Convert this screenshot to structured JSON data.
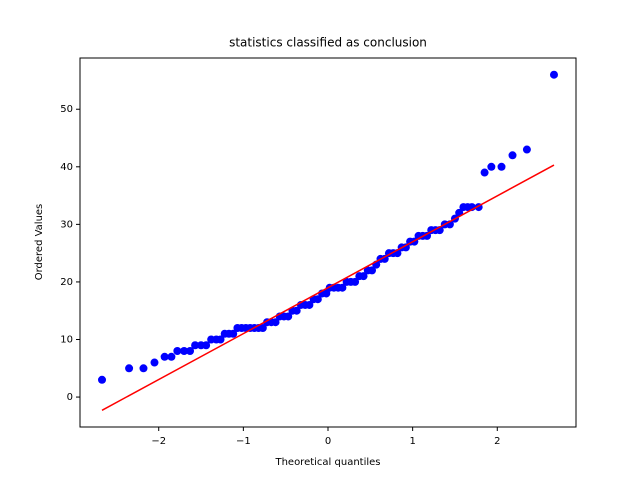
{
  "chart_data": {
    "type": "scatter",
    "title": "statistics classified as conclusion",
    "x_label": "Theoretical quantiles",
    "y_label": "Ordered Values",
    "xlim": [
      -2.93,
      2.93
    ],
    "ylim": [
      -5.2,
      58.9
    ],
    "xticks": [
      {
        "value": -2,
        "label": "−2"
      },
      {
        "value": -1,
        "label": "−1"
      },
      0,
      1,
      2
    ],
    "yticks": [
      0,
      10,
      20,
      30,
      40,
      50
    ],
    "series": [
      {
        "color": "#0000ff",
        "x": [
          -2.67,
          -2.35,
          -2.18,
          -2.05,
          -1.93,
          -1.85,
          -1.78,
          -1.7,
          -1.63,
          -1.57,
          -1.5,
          -1.44,
          -1.38,
          -1.32,
          -1.27,
          -1.22,
          -1.17,
          -1.12,
          -1.07,
          -1.02,
          -0.97,
          -0.92,
          -0.87,
          -0.82,
          -0.77,
          -0.72,
          -0.67,
          -0.62,
          -0.57,
          -0.52,
          -0.47,
          -0.42,
          -0.37,
          -0.32,
          -0.27,
          -0.22,
          -0.17,
          -0.12,
          -0.07,
          -0.02,
          0.02,
          0.07,
          0.12,
          0.17,
          0.22,
          0.27,
          0.32,
          0.37,
          0.42,
          0.47,
          0.52,
          0.57,
          0.62,
          0.67,
          0.72,
          0.77,
          0.82,
          0.87,
          0.92,
          0.97,
          1.02,
          1.07,
          1.12,
          1.17,
          1.22,
          1.27,
          1.32,
          1.38,
          1.44,
          1.5,
          1.55,
          1.6,
          1.65,
          1.7,
          1.78,
          1.85,
          1.93,
          2.05,
          2.18,
          2.35,
          2.67
        ],
        "values": [
          3,
          5,
          5,
          6,
          7,
          7,
          8,
          8,
          8,
          9,
          9,
          9,
          10,
          10,
          10,
          11,
          11,
          11,
          12,
          12,
          12,
          12,
          12,
          12,
          12,
          13,
          13,
          13,
          14,
          14,
          14,
          15,
          15,
          16,
          16,
          16,
          17,
          17,
          18,
          18,
          19,
          19,
          19,
          19,
          20,
          20,
          20,
          21,
          21,
          22,
          22,
          23,
          24,
          24,
          25,
          25,
          25,
          26,
          26,
          27,
          27,
          28,
          28,
          28,
          29,
          29,
          29,
          30,
          30,
          31,
          32,
          33,
          33,
          33,
          33,
          39,
          40,
          40,
          42,
          43,
          56
        ]
      }
    ],
    "fit_line": {
      "color": "#ff0000",
      "x": [
        -2.67,
        2.67
      ],
      "values": [
        -2.3,
        40.3
      ]
    }
  }
}
